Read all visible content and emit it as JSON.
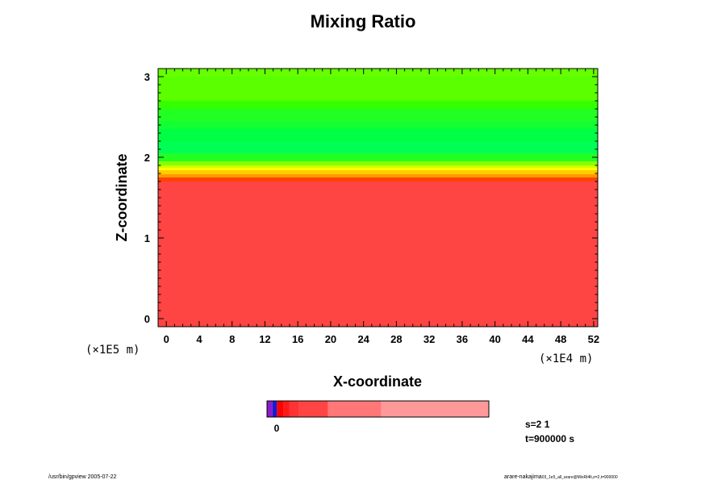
{
  "title": "Mixing Ratio",
  "chart_data": {
    "type": "heatmap",
    "title": "Mixing Ratio",
    "xlabel": "X-coordinate",
    "ylabel": "Z-coordinate",
    "x_unit": "(×1E4 m)",
    "y_unit": "(×1E5 m)",
    "xlim": [
      -1,
      52.5
    ],
    "ylim": [
      -0.1,
      3.1
    ],
    "x_ticks": [
      0,
      4,
      8,
      12,
      16,
      20,
      24,
      28,
      32,
      36,
      40,
      44,
      48,
      52
    ],
    "y_ticks": [
      0,
      1,
      2,
      3
    ],
    "bands": [
      {
        "z0": 3.0,
        "z1": 3.1,
        "color": "#66ff00"
      },
      {
        "z0": 2.7,
        "z1": 3.0,
        "color": "#5cff00"
      },
      {
        "z0": 2.6,
        "z1": 2.7,
        "color": "#33ff00"
      },
      {
        "z0": 2.45,
        "z1": 2.6,
        "color": "#22ff22"
      },
      {
        "z0": 2.35,
        "z1": 2.45,
        "color": "#11ff33"
      },
      {
        "z0": 2.2,
        "z1": 2.35,
        "color": "#00ff44"
      },
      {
        "z0": 2.05,
        "z1": 2.2,
        "color": "#00ff55"
      },
      {
        "z0": 1.95,
        "z1": 2.05,
        "color": "#22ff22"
      },
      {
        "z0": 1.9,
        "z1": 1.95,
        "color": "#88ff00"
      },
      {
        "z0": 1.87,
        "z1": 1.9,
        "color": "#ccff00"
      },
      {
        "z0": 1.84,
        "z1": 1.87,
        "color": "#ffff00"
      },
      {
        "z0": 1.79,
        "z1": 1.84,
        "color": "#ffcc00"
      },
      {
        "z0": 1.75,
        "z1": 1.79,
        "color": "#ff9900"
      },
      {
        "z0": 1.7,
        "z1": 1.75,
        "color": "#ff4400"
      },
      {
        "z0": -0.1,
        "z1": 1.7,
        "color": "#ff4444"
      }
    ],
    "colorbar": {
      "tick_labels": [
        "0"
      ],
      "segments": [
        {
          "width": 0.025,
          "color": "#8a1acc"
        },
        {
          "width": 0.02,
          "color": "#1a1acc"
        },
        {
          "width": 0.03,
          "color": "#ff0000"
        },
        {
          "width": 0.025,
          "color": "#ff1a1a"
        },
        {
          "width": 0.045,
          "color": "#ff3333"
        },
        {
          "width": 0.13,
          "color": "#ff4444"
        },
        {
          "width": 0.24,
          "color": "#ff7777"
        },
        {
          "width": 0.485,
          "color": "#ff9999"
        }
      ]
    }
  },
  "info": {
    "s": "s=2 1",
    "t": "t=900000 s"
  },
  "footer": {
    "left": "/usr/bin/gpview 2005-07-22",
    "right_main": "arare-nakajima",
    "right_sub": "03_1e5_all_arare@MixRt4lt,z=2,t=900000"
  }
}
